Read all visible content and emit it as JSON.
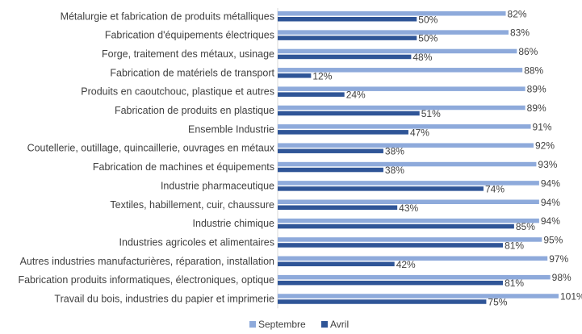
{
  "colors": {
    "septembre": "#8eaadb",
    "avril": "#2f5597",
    "axis": "#d9d9d9",
    "text": "#404040"
  },
  "chart_data": {
    "type": "bar",
    "orientation": "horizontal",
    "title": "",
    "xlabel": "",
    "ylabel": "",
    "value_suffix": "%",
    "xlim": [
      0,
      101
    ],
    "grid": false,
    "legend_position": "bottom-center",
    "categories": [
      "Métalurgie et fabrication de produits métalliques",
      "Fabrication d'équipements électriques",
      "Forge, traitement des métaux, usinage",
      "Fabrication de matériels de transport",
      "Produits en caoutchouc, plastique et autres",
      "Fabrication de produits en plastique",
      "Ensemble Industrie",
      "Coutellerie, outillage, quincaillerie, ouvrages en métaux",
      "Fabrication de machines et équipements",
      "Industrie pharmaceutique",
      "Textiles, habillement, cuir, chaussure",
      "Industrie chimique",
      "Industries agricoles et alimentaires",
      "Autres industries manufacturières, réparation, installation",
      "Fabrication produits informatiques, électroniques, optique",
      "Travail du bois, industries du papier et imprimerie"
    ],
    "series": [
      {
        "name": "Septembre",
        "color": "#8eaadb",
        "values": [
          82,
          83,
          86,
          88,
          89,
          89,
          91,
          92,
          93,
          94,
          94,
          94,
          95,
          97,
          98,
          101
        ]
      },
      {
        "name": "Avril",
        "color": "#2f5597",
        "values": [
          50,
          50,
          48,
          12,
          24,
          51,
          47,
          38,
          38,
          74,
          43,
          85,
          81,
          42,
          81,
          75
        ]
      }
    ]
  }
}
